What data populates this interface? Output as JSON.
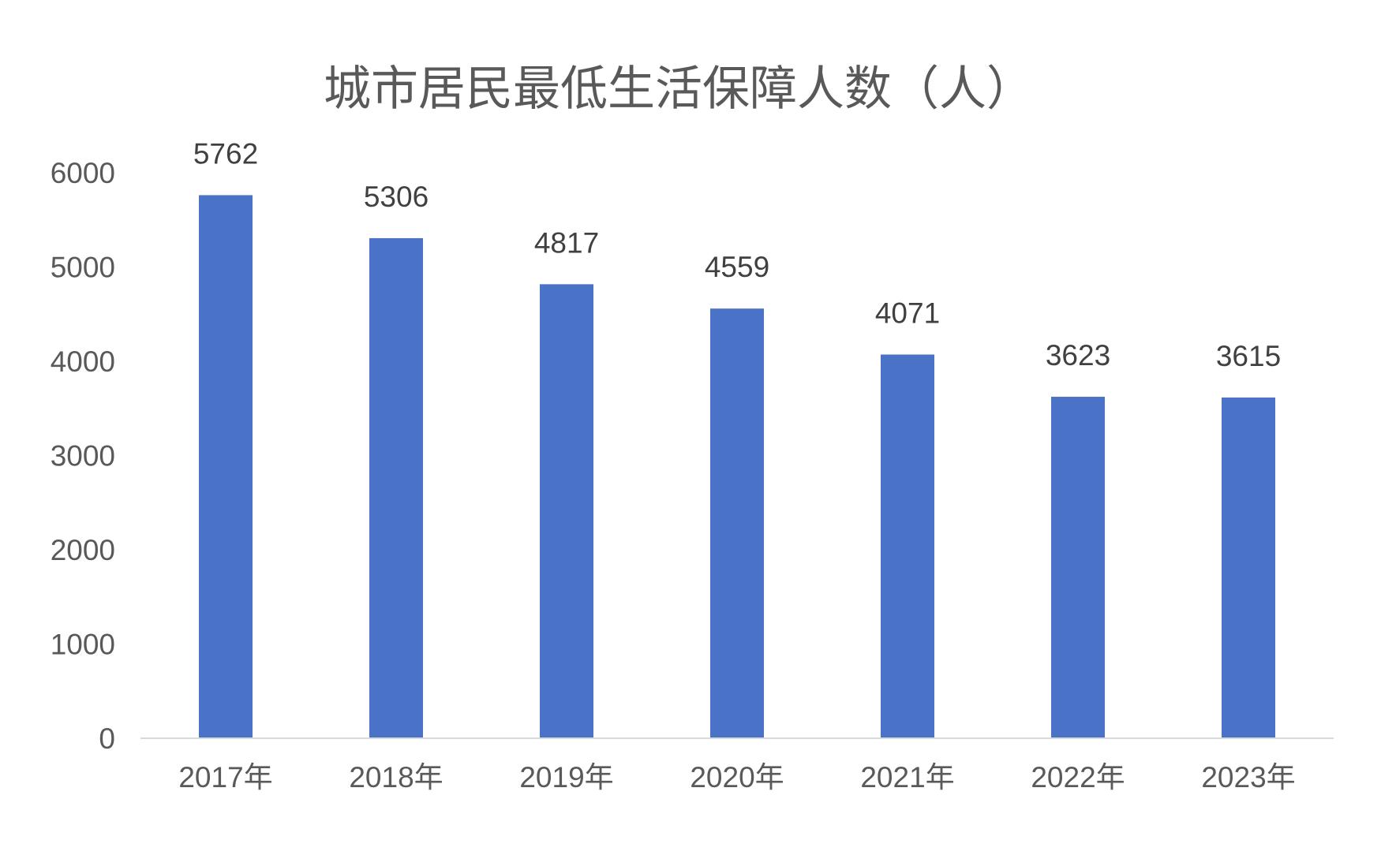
{
  "chart_data": {
    "type": "bar",
    "title": "城市居民最低生活保障人数（人）",
    "categories": [
      "2017年",
      "2018年",
      "2019年",
      "2020年",
      "2021年",
      "2022年",
      "2023年"
    ],
    "values": [
      5762,
      5306,
      4817,
      4559,
      4071,
      3623,
      3615
    ],
    "ylim": [
      0,
      6000
    ],
    "yticks": [
      "0",
      "1000",
      "2000",
      "3000",
      "4000",
      "5000",
      "6000"
    ],
    "grid": false,
    "data_labels": true,
    "bar_color": "#4a72c6",
    "axis_color": "#d9d9d9",
    "text_color": "#595959"
  }
}
